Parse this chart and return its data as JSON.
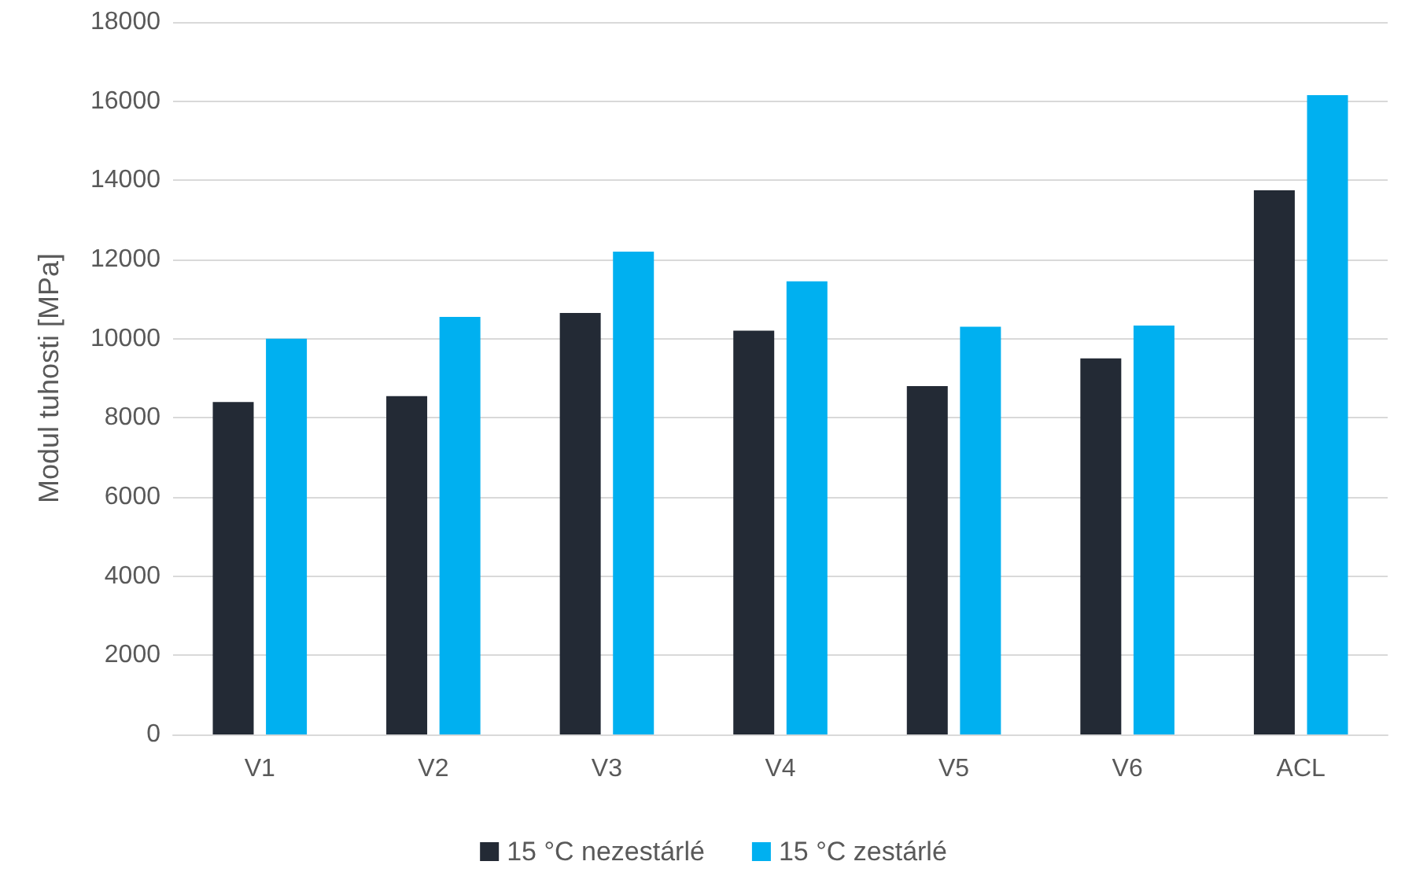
{
  "chart_data": {
    "type": "bar",
    "ylabel": "Modul tuhosti [MPa]",
    "categories": [
      "V1",
      "V2",
      "V3",
      "V4",
      "V5",
      "V6",
      "ACL"
    ],
    "series": [
      {
        "name": "15 °C nezestárlé",
        "color": "#232a35",
        "values": [
          8400,
          8550,
          10650,
          10200,
          8800,
          9500,
          13750
        ]
      },
      {
        "name": "15 °C zestárlé",
        "color": "#00b0f0",
        "values": [
          10000,
          10550,
          12200,
          11450,
          10300,
          10330,
          16150
        ]
      }
    ],
    "ylim": [
      0,
      18000
    ],
    "yticks": [
      0,
      2000,
      4000,
      6000,
      8000,
      10000,
      12000,
      14000,
      16000,
      18000
    ],
    "grid": "y",
    "legend": "bottom"
  }
}
